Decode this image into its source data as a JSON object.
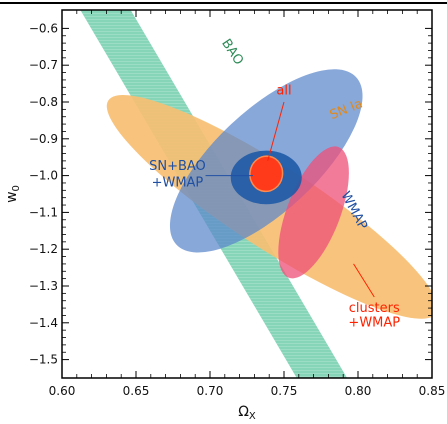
{
  "chart_data": {
    "type": "contour",
    "xlabel": "Ω",
    "xlabel_sub": "X",
    "ylabel": "w",
    "ylabel_sub": "0",
    "xlim": [
      0.6,
      0.85
    ],
    "ylim": [
      -1.55,
      -0.55
    ],
    "x_ticks": [
      {
        "v": 0.6,
        "label": "0.60"
      },
      {
        "v": 0.65,
        "label": "0.65"
      },
      {
        "v": 0.7,
        "label": "0.70"
      },
      {
        "v": 0.75,
        "label": "0.75"
      },
      {
        "v": 0.8,
        "label": "0.80"
      },
      {
        "v": 0.85,
        "label": "0.85"
      }
    ],
    "y_ticks": [
      {
        "v": -0.6,
        "label": "−0.6"
      },
      {
        "v": -0.7,
        "label": "−0.7"
      },
      {
        "v": -0.8,
        "label": "−0.8"
      },
      {
        "v": -0.9,
        "label": "−0.9"
      },
      {
        "v": -1.0,
        "label": "−1.0"
      },
      {
        "v": -1.1,
        "label": "−1.1"
      },
      {
        "v": -1.2,
        "label": "−1.2"
      },
      {
        "v": -1.3,
        "label": "−1.3"
      },
      {
        "v": -1.4,
        "label": "−1.4"
      },
      {
        "v": -1.5,
        "label": "−1.5"
      }
    ],
    "colors": {
      "bao": "#7fd3b4",
      "sn": "#f7bf72",
      "wmap": "#5a86cc",
      "clusters": "#ef4f78",
      "combined": "#1f5aa6",
      "all": "#ff3a1a"
    },
    "regions": {
      "bao": {
        "x1": 0.625,
        "y1": -0.52,
        "x2": 0.78,
        "y2": -1.58,
        "half_width_x": 0.017
      },
      "sn": {
        "cx": 0.742,
        "cy": -1.085,
        "rx": 0.132,
        "ry": 0.112,
        "angle": 33
      },
      "wmap": {
        "cx": 0.738,
        "cy": -0.96,
        "rx": 0.083,
        "ry": 0.138,
        "angle": -43
      },
      "clusters": {
        "cx": 0.77,
        "cy": -1.1,
        "rx": 0.018,
        "ry": 0.19,
        "angle": 21
      },
      "combined": {
        "cx": 0.738,
        "cy": -1.005,
        "rx": 0.024,
        "ry": 0.073,
        "angle": 0
      },
      "all": {
        "cx": 0.738,
        "cy": -0.995,
        "rx": 0.011,
        "ry": 0.048,
        "angle": 10
      }
    },
    "labels": {
      "bao": {
        "text": "BAO",
        "x": 0.713,
        "y": -0.67,
        "rotate": 56,
        "color": "#2e8b57"
      },
      "sn": {
        "text": "SN Ia",
        "x": 0.793,
        "y": -0.83,
        "rotate": -22,
        "color": "#e08a1e"
      },
      "wmap": {
        "text": "WMAP",
        "x": 0.795,
        "y": -1.1,
        "rotate": 62,
        "color": "#1f4fa3"
      },
      "all": {
        "text": "all",
        "x": 0.75,
        "y": -0.78,
        "color": "#ff2200"
      },
      "combined_1": {
        "text": "SN+BAO",
        "x": 0.678,
        "y": -0.985,
        "color": "#1f4fa3"
      },
      "combined_2": {
        "text": "+WMAP",
        "x": 0.678,
        "y": -1.03,
        "color": "#1f4fa3"
      },
      "clusters_1": {
        "text": "clusters",
        "x": 0.811,
        "y": -1.37,
        "color": "#ff2200"
      },
      "clusters_2": {
        "text": "+WMAP",
        "x": 0.811,
        "y": -1.41,
        "color": "#ff2200"
      }
    },
    "leaders": {
      "all": {
        "from": [
          0.75,
          -0.8
        ],
        "to": [
          0.739,
          -0.96
        ],
        "color": "#ff2200"
      },
      "combined": {
        "from": [
          0.697,
          -1.0
        ],
        "to": [
          0.729,
          -1.0
        ],
        "color": "#1f4fa3"
      },
      "clusters": {
        "from": [
          0.797,
          -1.24
        ],
        "to": [
          0.811,
          -1.33
        ],
        "color": "#ff2200"
      }
    }
  }
}
